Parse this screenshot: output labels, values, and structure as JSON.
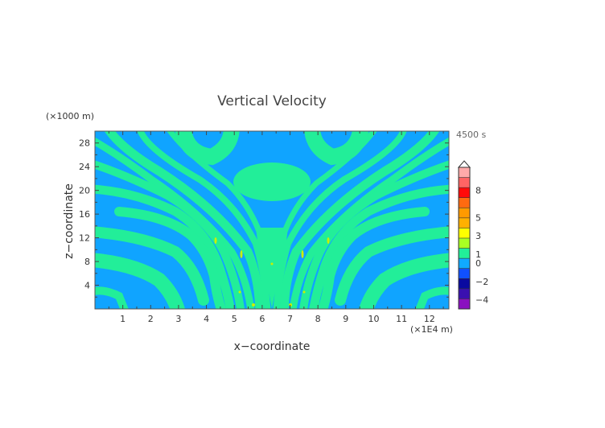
{
  "chart_data": {
    "type": "heatmap",
    "title": "Vertical Velocity",
    "xlabel": "x−coordinate",
    "ylabel": "z−coordinate",
    "x_unit": "(×1E4 m)",
    "y_unit": "(×1000 m)",
    "time_label": "4500 s",
    "xlim": [
      0,
      12.7
    ],
    "ylim": [
      0,
      30
    ],
    "x_ticks": [
      "1",
      "2",
      "3",
      "4",
      "5",
      "6",
      "7",
      "8",
      "9",
      "10",
      "11",
      "12"
    ],
    "y_ticks": [
      "4",
      "8",
      "12",
      "16",
      "20",
      "24",
      "28"
    ],
    "colorbar": {
      "labels": [
        {
          "value": 8,
          "text": "8"
        },
        {
          "value": 5,
          "text": "5"
        },
        {
          "value": 3,
          "text": "3"
        },
        {
          "value": 1,
          "text": "1"
        },
        {
          "value": 0,
          "text": "0"
        },
        {
          "value": -2,
          "text": "−2"
        },
        {
          "value": -4,
          "text": "−4"
        }
      ],
      "colors": [
        "#ffaaaa",
        "#ff6464",
        "#ff0a0a",
        "#ff6a10",
        "#ff9a00",
        "#ffb000",
        "#ffff00",
        "#aaff22",
        "#22ee99",
        "#10aaff",
        "#1050ff",
        "#0a0aa0",
        "#3a10b0",
        "#8a10c0"
      ],
      "extend": "max"
    },
    "dominant_fields": {
      "positive_band_color": "#22ee99",
      "negative_band_color": "#10aaff",
      "peak_color": "#ccee00"
    }
  }
}
